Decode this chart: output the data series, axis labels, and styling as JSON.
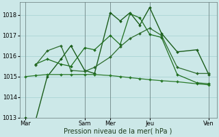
{
  "background_color": "#cce8e8",
  "grid_color": "#aad4d4",
  "xlabel": "Pression niveau de la mer( hPa )",
  "ylim": [
    1013.0,
    1018.6
  ],
  "yticks": [
    1013,
    1014,
    1015,
    1016,
    1017,
    1018
  ],
  "xlim": [
    0,
    100
  ],
  "xtick_labels_text": [
    "Mar",
    "Sam",
    "Mer",
    "Jeu",
    "Ven"
  ],
  "xtick_positions_norm": [
    3,
    33,
    46,
    66,
    96
  ],
  "vline_positions": [
    3,
    33,
    46,
    66,
    96
  ],
  "series": [
    {
      "x": [
        3,
        8,
        14,
        21,
        26,
        33,
        38,
        46,
        51,
        56,
        61,
        66,
        72,
        80,
        90,
        96
      ],
      "y": [
        1013.0,
        1012.85,
        1015.0,
        1015.85,
        1016.5,
        1015.3,
        1015.15,
        1018.1,
        1017.7,
        1018.1,
        1017.5,
        1018.35,
        1017.1,
        1016.2,
        1016.3,
        1015.1
      ],
      "color": "#1a5c1a",
      "lw": 1.0
    },
    {
      "x": [
        3,
        8,
        14,
        21,
        26,
        33,
        38,
        46,
        51,
        56,
        61,
        66,
        72,
        80,
        90,
        96
      ],
      "y": [
        1015.0,
        1015.05,
        1015.1,
        1015.1,
        1015.1,
        1015.1,
        1015.1,
        1015.05,
        1015.0,
        1014.95,
        1014.9,
        1014.85,
        1014.8,
        1014.75,
        1014.65,
        1014.6
      ],
      "color": "#2a7a2a",
      "lw": 0.9
    },
    {
      "x": [
        8,
        14,
        21,
        26,
        33,
        38,
        46,
        51,
        56,
        61,
        66,
        72,
        80,
        90,
        96
      ],
      "y": [
        1015.6,
        1015.85,
        1015.6,
        1015.5,
        1016.4,
        1016.3,
        1017.0,
        1016.55,
        1018.05,
        1017.85,
        1017.05,
        1016.9,
        1015.1,
        1014.7,
        1014.65
      ],
      "color": "#1e6e1e",
      "lw": 0.9
    },
    {
      "x": [
        8,
        14,
        21,
        26,
        33,
        38,
        46,
        51,
        56,
        61,
        66,
        72,
        80,
        90,
        96
      ],
      "y": [
        1015.55,
        1016.25,
        1016.5,
        1015.3,
        1015.25,
        1015.45,
        1015.95,
        1016.45,
        1016.85,
        1017.1,
        1017.35,
        1017.0,
        1015.45,
        1015.15,
        1015.15
      ],
      "color": "#2a6a2a",
      "lw": 0.9
    }
  ],
  "marker": "D",
  "markersize": 2.0,
  "xlabel_fontsize": 7,
  "tick_fontsize": 6
}
